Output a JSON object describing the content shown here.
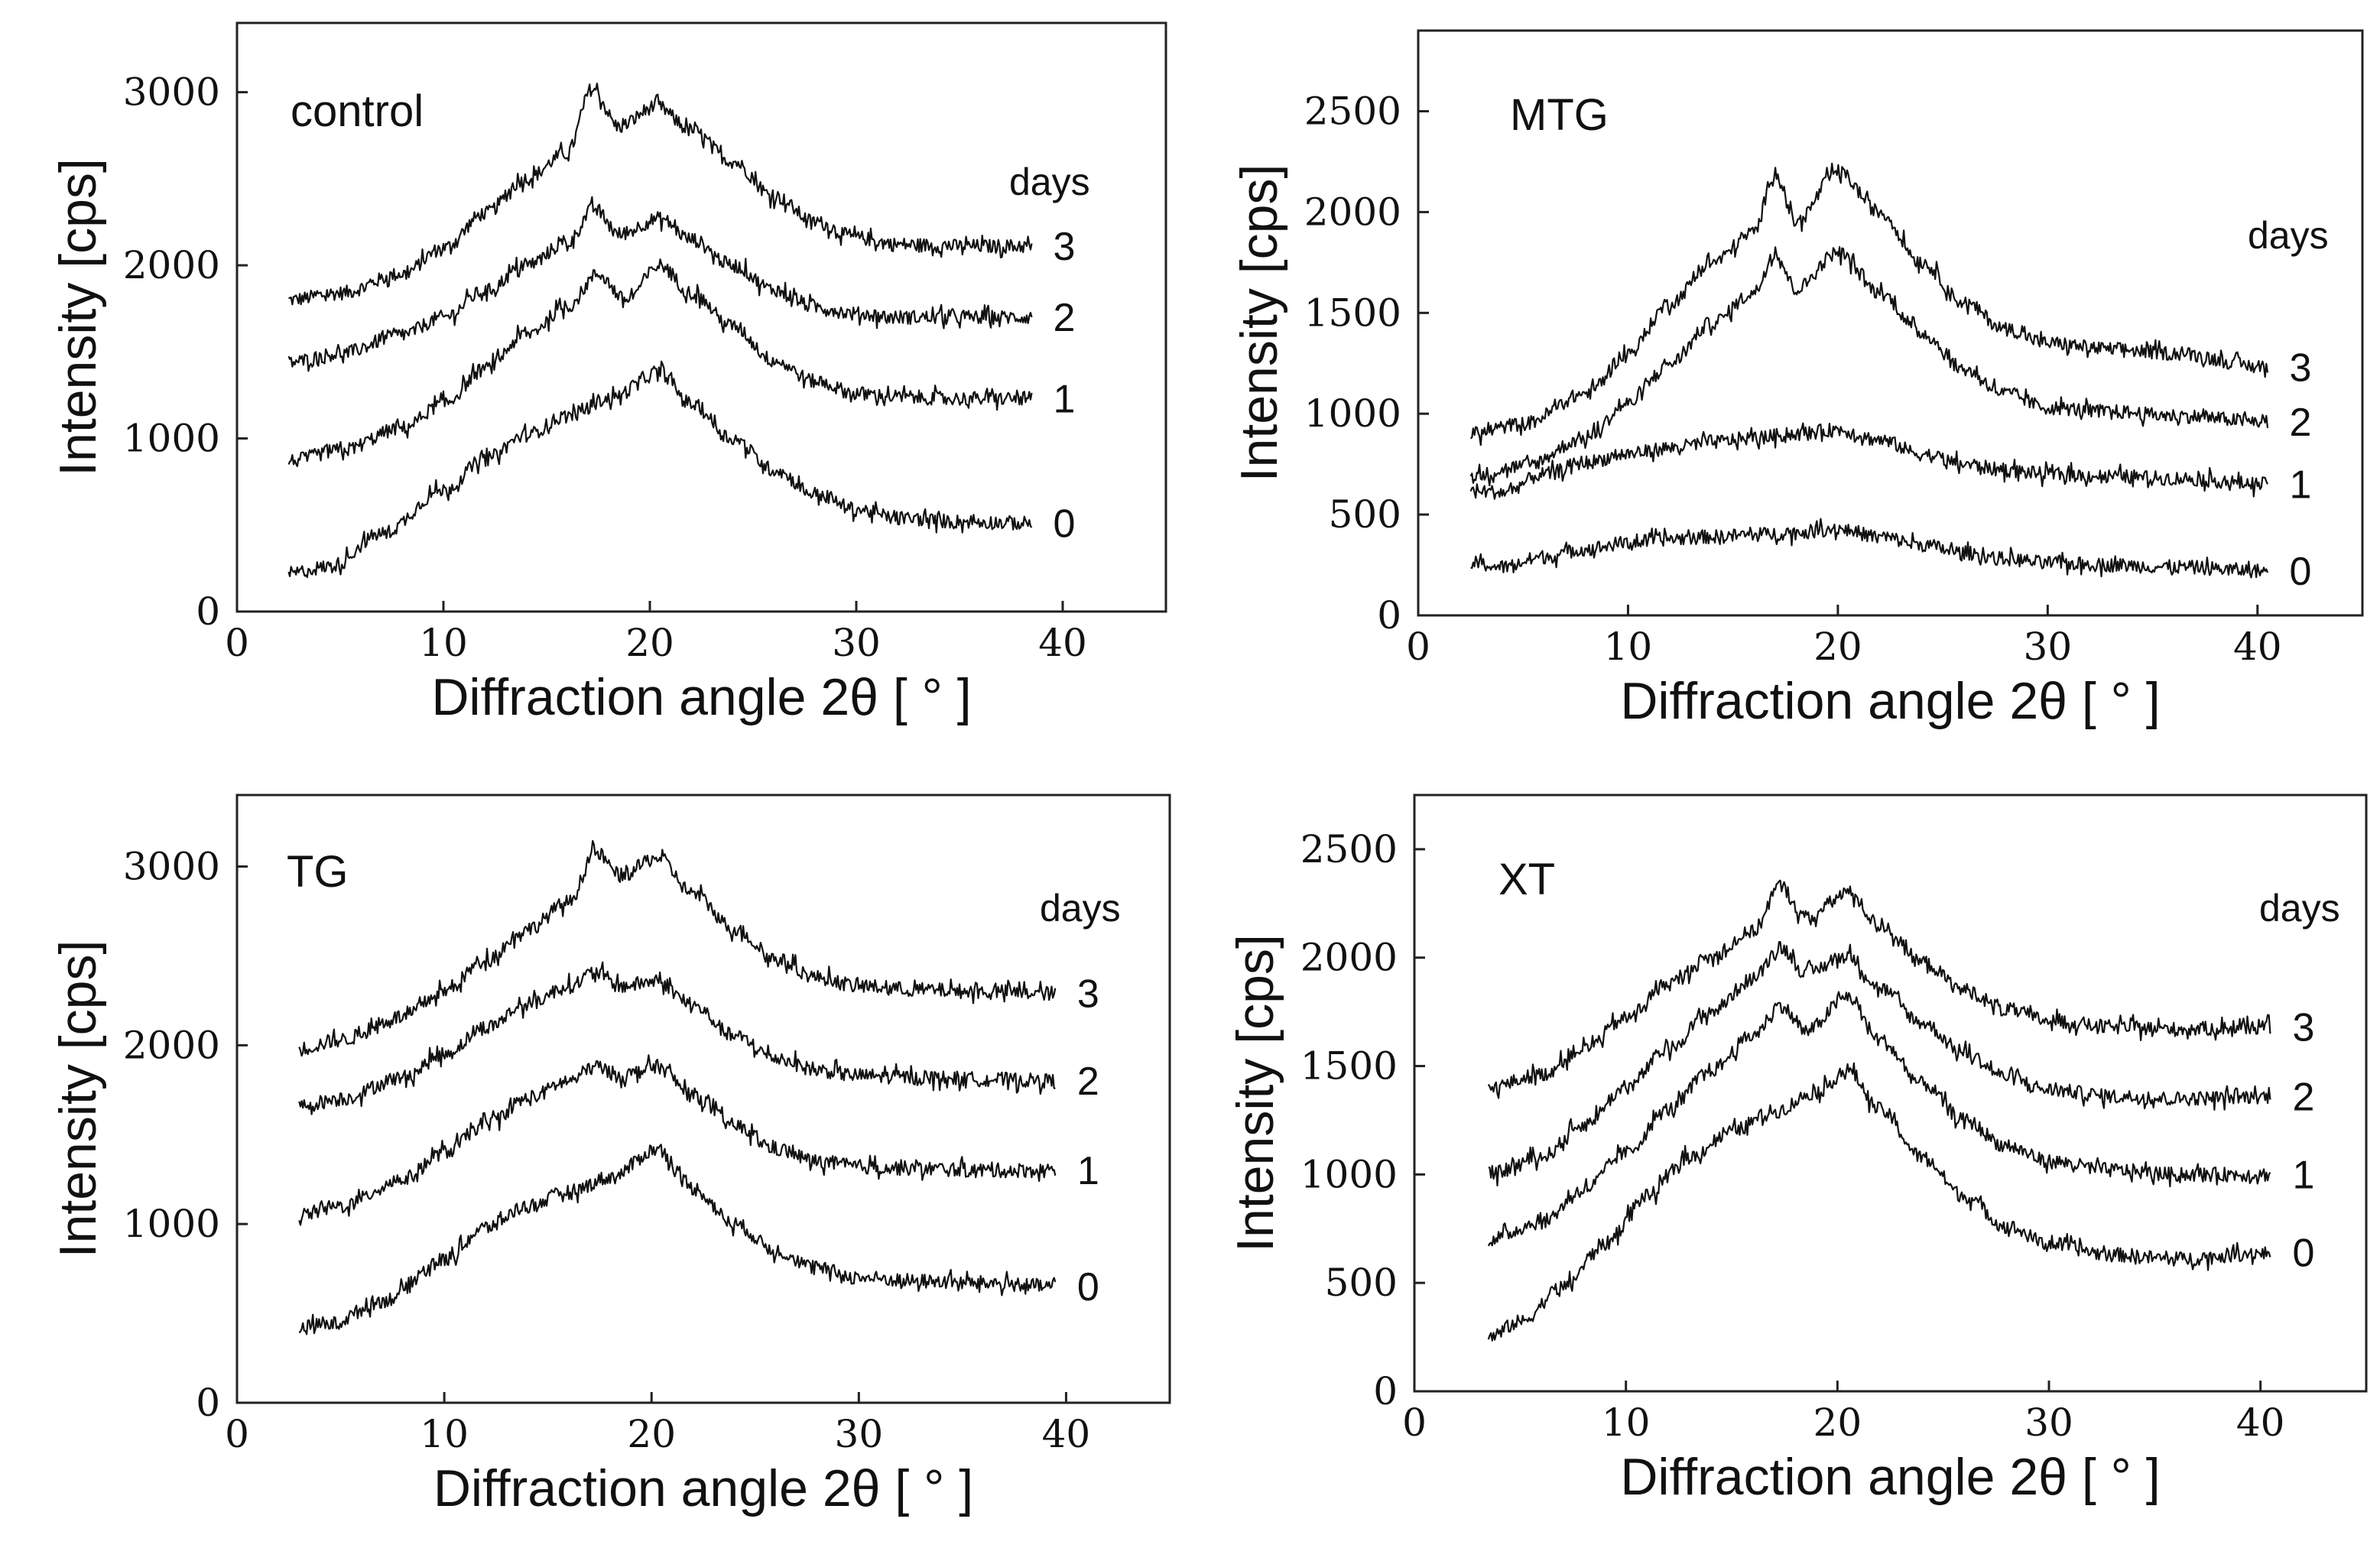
{
  "chart_data": [
    {
      "type": "line",
      "title": "control",
      "xlabel": "Diffraction angle 2θ [ ° ]",
      "ylabel": "Intensity [cps]",
      "xlim": [
        0,
        45
      ],
      "ylim": [
        0,
        3400
      ],
      "xticks": [
        "0",
        "10",
        "20",
        "30",
        "40"
      ],
      "yticks": [
        "0",
        "1000",
        "2000",
        "3000"
      ],
      "ytick_values": [
        0,
        1000,
        2000,
        3000
      ],
      "legend_title": "days",
      "series": [
        {
          "name": "3",
          "x": [
            2.5,
            5,
            8,
            10,
            12,
            14,
            16,
            17.2,
            18.5,
            20.3,
            22,
            24,
            26,
            28,
            30,
            32,
            35,
            38.5
          ],
          "y": [
            1800,
            1840,
            1950,
            2100,
            2300,
            2500,
            2650,
            3020,
            2800,
            2920,
            2780,
            2600,
            2400,
            2250,
            2160,
            2120,
            2110,
            2110
          ]
        },
        {
          "name": "2",
          "x": [
            2.5,
            5,
            8,
            10,
            12,
            14,
            16,
            17.3,
            18.5,
            20.5,
            22,
            24,
            26,
            28,
            30,
            32,
            35,
            38.5
          ],
          "y": [
            1440,
            1490,
            1600,
            1700,
            1850,
            2000,
            2130,
            2330,
            2180,
            2270,
            2150,
            2000,
            1860,
            1760,
            1720,
            1700,
            1700,
            1700
          ]
        },
        {
          "name": "1",
          "x": [
            2.5,
            5,
            8,
            10,
            12,
            14,
            16,
            17.5,
            18.8,
            20.5,
            22,
            24,
            26,
            28,
            30,
            32,
            35,
            38.5
          ],
          "y": [
            870,
            930,
            1060,
            1200,
            1400,
            1600,
            1760,
            1950,
            1800,
            2000,
            1840,
            1650,
            1450,
            1330,
            1260,
            1240,
            1230,
            1230
          ]
        },
        {
          "name": "0",
          "x": [
            2.5,
            4.5,
            7,
            10,
            12,
            14,
            16,
            18,
            20.5,
            22,
            24,
            26,
            28,
            30,
            32,
            35,
            38.5
          ],
          "y": [
            220,
            260,
            450,
            700,
            880,
            1020,
            1130,
            1230,
            1380,
            1200,
            1000,
            820,
            680,
            590,
            540,
            520,
            510
          ]
        }
      ]
    },
    {
      "type": "line",
      "title": "MTG",
      "xlabel": "Diffraction angle 2θ [ ° ]",
      "ylabel": "Intensity [cps]",
      "xlim": [
        0,
        45
      ],
      "ylim": [
        0,
        2900
      ],
      "xticks": [
        "0",
        "10",
        "20",
        "30",
        "40"
      ],
      "yticks": [
        "0",
        "500",
        "1000",
        "1500",
        "2000",
        "2500"
      ],
      "ytick_values": [
        0,
        500,
        1000,
        1500,
        2000,
        2500
      ],
      "legend_title": "days",
      "series": [
        {
          "name": "3",
          "x": [
            2.5,
            5,
            8,
            10,
            12,
            14,
            16,
            17,
            18,
            20,
            22,
            24,
            26,
            28,
            30,
            33,
            36,
            40.5
          ],
          "y": [
            900,
            950,
            1100,
            1300,
            1550,
            1750,
            1900,
            2200,
            1950,
            2200,
            2000,
            1750,
            1550,
            1420,
            1350,
            1320,
            1300,
            1230
          ]
        },
        {
          "name": "2",
          "x": [
            2.5,
            5,
            8,
            10,
            12,
            14,
            16,
            17,
            18,
            20,
            22,
            24,
            26,
            28,
            30,
            33,
            36,
            40.5
          ],
          "y": [
            690,
            740,
            880,
            1050,
            1250,
            1450,
            1600,
            1800,
            1620,
            1800,
            1600,
            1400,
            1220,
            1100,
            1030,
            1010,
            990,
            960
          ]
        },
        {
          "name": "1",
          "x": [
            2.5,
            4,
            6,
            8,
            10,
            12,
            14,
            16,
            18,
            20,
            22,
            24,
            26,
            28,
            30,
            33,
            36,
            40.5
          ],
          "y": [
            620,
            610,
            700,
            760,
            800,
            830,
            860,
            880,
            900,
            920,
            870,
            800,
            750,
            720,
            700,
            690,
            680,
            650
          ]
        },
        {
          "name": "0",
          "x": [
            2.5,
            4,
            6,
            8,
            10,
            12,
            14,
            16,
            18,
            20,
            22,
            24,
            26,
            28,
            30,
            33,
            36,
            40.5
          ],
          "y": [
            260,
            240,
            290,
            330,
            360,
            380,
            390,
            400,
            410,
            430,
            390,
            350,
            310,
            280,
            260,
            250,
            240,
            220
          ]
        }
      ]
    },
    {
      "type": "line",
      "title": "TG",
      "xlabel": "Diffraction angle 2θ [ ° ]",
      "ylabel": "Intensity [cps]",
      "xlim": [
        0,
        45
      ],
      "ylim": [
        0,
        3400
      ],
      "xticks": [
        "0",
        "10",
        "20",
        "30",
        "40"
      ],
      "yticks": [
        "0",
        "1000",
        "2000",
        "3000"
      ],
      "ytick_values": [
        0,
        1000,
        2000,
        3000
      ],
      "legend_title": "days",
      "series": [
        {
          "name": "3",
          "x": [
            3,
            5,
            8,
            10,
            12,
            14,
            16,
            17.3,
            18.5,
            20.3,
            22,
            24,
            26,
            28,
            30,
            33,
            36,
            39.5
          ],
          "y": [
            1980,
            2030,
            2160,
            2300,
            2480,
            2650,
            2800,
            3080,
            2950,
            3050,
            2850,
            2650,
            2480,
            2380,
            2330,
            2310,
            2300,
            2290
          ]
        },
        {
          "name": "2",
          "x": [
            3,
            5,
            8,
            10,
            12,
            14,
            16,
            17.3,
            18.5,
            20.3,
            22,
            24,
            26,
            28,
            30,
            33,
            36,
            39.5
          ],
          "y": [
            1660,
            1700,
            1820,
            1950,
            2100,
            2230,
            2330,
            2410,
            2330,
            2360,
            2220,
            2050,
            1930,
            1860,
            1830,
            1820,
            1810,
            1800
          ]
        },
        {
          "name": "1",
          "x": [
            3,
            5,
            8,
            10,
            12,
            14,
            16,
            17.3,
            18.5,
            20.3,
            22,
            24,
            26,
            28,
            30,
            33,
            36,
            39.5
          ],
          "y": [
            1050,
            1100,
            1250,
            1400,
            1560,
            1700,
            1800,
            1880,
            1830,
            1880,
            1720,
            1550,
            1420,
            1350,
            1320,
            1310,
            1300,
            1300
          ]
        },
        {
          "name": "0",
          "x": [
            3,
            4.5,
            7,
            10,
            12,
            14,
            16,
            18,
            20.3,
            22,
            24,
            26,
            28,
            30,
            33,
            36,
            39.5
          ],
          "y": [
            420,
            440,
            570,
            800,
            980,
            1100,
            1180,
            1260,
            1420,
            1200,
            1000,
            850,
            750,
            700,
            680,
            670,
            650
          ]
        }
      ]
    },
    {
      "type": "line",
      "title": "XT",
      "xlabel": "Diffraction angle 2θ [ ° ]",
      "ylabel": "Intensity [cps]",
      "xlim": [
        0,
        45
      ],
      "ylim": [
        0,
        2750
      ],
      "xticks": [
        "0",
        "10",
        "20",
        "30",
        "40"
      ],
      "yticks": [
        "0",
        "500",
        "1000",
        "1500",
        "2000",
        "2500"
      ],
      "ytick_values": [
        0,
        500,
        1000,
        1500,
        2000,
        2500
      ],
      "legend_title": "days",
      "series": [
        {
          "name": "3",
          "x": [
            3.5,
            6,
            8,
            10,
            12,
            14,
            16,
            17.3,
            18.5,
            20.5,
            22,
            24,
            26,
            28,
            30,
            33,
            36,
            40.5
          ],
          "y": [
            1400,
            1460,
            1580,
            1720,
            1880,
            2000,
            2120,
            2330,
            2180,
            2300,
            2150,
            1980,
            1850,
            1760,
            1710,
            1680,
            1670,
            1680
          ]
        },
        {
          "name": "2",
          "x": [
            3.5,
            6,
            8,
            10,
            12,
            14,
            16,
            17.3,
            18.5,
            20.5,
            22,
            24,
            26,
            28,
            30,
            33,
            36,
            40.5
          ],
          "y": [
            1000,
            1080,
            1230,
            1400,
            1580,
            1750,
            1900,
            2050,
            1930,
            2010,
            1860,
            1700,
            1560,
            1450,
            1390,
            1360,
            1350,
            1360
          ]
        },
        {
          "name": "1",
          "x": [
            3.5,
            6,
            8,
            10,
            12,
            14,
            16,
            17.3,
            18.5,
            20.5,
            22,
            24,
            26,
            28,
            30,
            33,
            36,
            40.5
          ],
          "y": [
            700,
            780,
            930,
            1100,
            1300,
            1480,
            1640,
            1780,
            1660,
            1820,
            1620,
            1420,
            1250,
            1130,
            1060,
            1020,
            1000,
            1000
          ]
        },
        {
          "name": "0",
          "x": [
            3.5,
            5,
            7,
            9,
            11,
            13,
            15,
            17,
            19,
            20.5,
            22,
            24,
            26,
            28,
            30,
            33,
            36,
            40.5
          ],
          "y": [
            250,
            320,
            480,
            680,
            900,
            1080,
            1200,
            1290,
            1380,
            1480,
            1300,
            1080,
            900,
            760,
            680,
            630,
            610,
            640
          ]
        }
      ]
    }
  ]
}
